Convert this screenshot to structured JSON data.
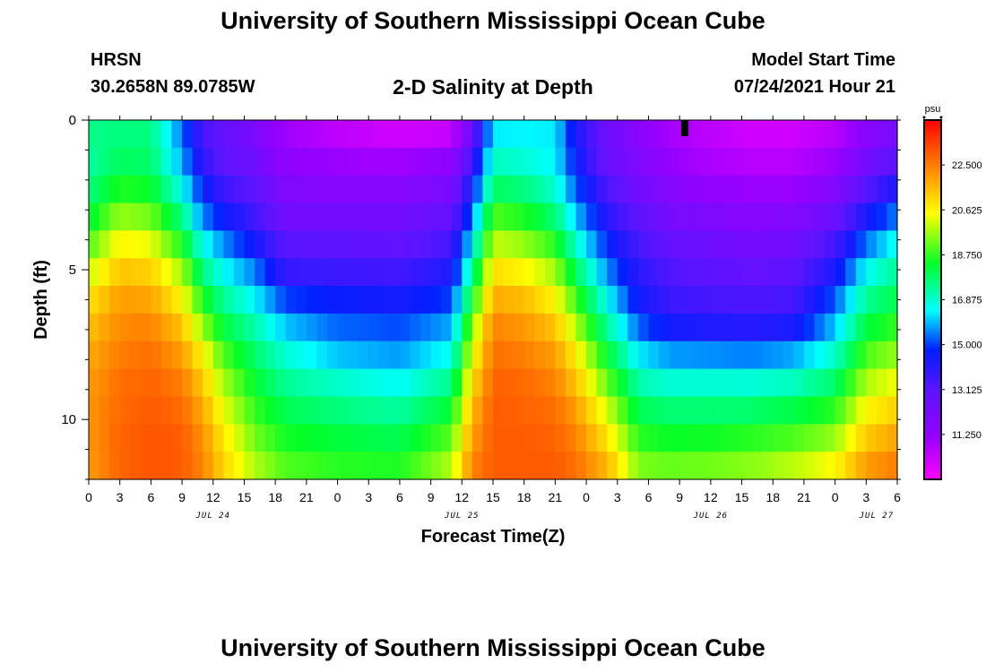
{
  "header": {
    "title": "University of Southern Mississippi Ocean Cube",
    "station": "HRSN",
    "coords": "30.2658N  89.0785W",
    "subtitle": "2-D Salinity at Depth",
    "model_label": "Model Start Time",
    "model_time": "07/24/2021 Hour 21"
  },
  "footer": {
    "title": "University of Southern Mississippi Ocean Cube"
  },
  "chart_data": {
    "type": "heatmap",
    "title": "2-D Salinity at Depth",
    "xlabel": "Forecast Time(Z)",
    "ylabel": "Depth (ft)",
    "x_range_hours_from_jul23_21z": [
      3,
      81
    ],
    "ylim": [
      0,
      12
    ],
    "y_ticks": [
      "0",
      "5",
      "10"
    ],
    "x_tick_labels": [
      "0",
      "3",
      "6",
      "9",
      "12",
      "15",
      "18",
      "21",
      "0",
      "3",
      "6",
      "9",
      "12",
      "15",
      "18",
      "21",
      "0",
      "3",
      "6",
      "9",
      "12",
      "15",
      "18",
      "21",
      "0",
      "3",
      "6"
    ],
    "date_labels": [
      "JUL 24",
      "JUL 25",
      "JUL 26",
      "JUL 27"
    ],
    "colorbar": {
      "unit": "psu",
      "min": 9.375,
      "max": 24.375,
      "ticks": [
        "22.500",
        "20.625",
        "18.750",
        "16.875",
        "15.000",
        "13.125",
        "11.250"
      ]
    },
    "depth_rows_ft": [
      0,
      1,
      2,
      3,
      4,
      5,
      6,
      7,
      8,
      9,
      10,
      11,
      12
    ],
    "columns": [
      {
        "t": 0,
        "s": [
          17.5,
          17.3,
          17.6,
          18.2,
          19.0,
          20.0,
          20.9,
          21.4,
          21.8,
          22.0,
          22.1,
          22.1,
          22.0
        ]
      },
      {
        "t": 3,
        "s": [
          17.6,
          17.9,
          18.6,
          19.6,
          20.6,
          21.4,
          22.0,
          22.3,
          22.5,
          22.7,
          22.8,
          22.9,
          22.9
        ]
      },
      {
        "t": 6,
        "s": [
          17.6,
          17.8,
          18.4,
          19.3,
          20.3,
          21.2,
          21.9,
          22.4,
          22.7,
          22.9,
          23.0,
          23.1,
          23.1
        ]
      },
      {
        "t": 9,
        "s": [
          15.4,
          15.8,
          16.6,
          17.6,
          18.6,
          19.7,
          20.6,
          21.4,
          22.0,
          22.5,
          22.8,
          23.0,
          23.0
        ]
      },
      {
        "t": 11,
        "s": [
          13.4,
          13.9,
          14.7,
          15.5,
          16.6,
          17.6,
          18.6,
          19.6,
          20.6,
          21.3,
          21.8,
          22.2,
          22.4
        ]
      },
      {
        "t": 13,
        "s": [
          12.9,
          13.0,
          13.7,
          14.6,
          15.6,
          16.5,
          17.4,
          18.2,
          19.0,
          19.7,
          20.3,
          20.8,
          21.1
        ]
      },
      {
        "t": 16,
        "s": [
          12.0,
          12.4,
          13.0,
          13.6,
          14.4,
          15.5,
          16.4,
          17.2,
          17.8,
          18.3,
          18.8,
          19.3,
          19.8
        ]
      },
      {
        "t": 19,
        "s": [
          11.0,
          11.4,
          11.9,
          12.4,
          13.1,
          13.8,
          15.0,
          16.0,
          16.8,
          17.4,
          18.0,
          18.5,
          19.0
        ]
      },
      {
        "t": 24,
        "s": [
          10.5,
          11.1,
          11.7,
          12.3,
          13.0,
          13.7,
          14.6,
          15.3,
          16.0,
          16.9,
          17.6,
          18.2,
          18.7
        ]
      },
      {
        "t": 30,
        "s": [
          10.2,
          11.0,
          11.7,
          12.3,
          12.9,
          13.6,
          14.4,
          15.1,
          15.7,
          16.5,
          17.3,
          18.0,
          18.6
        ]
      },
      {
        "t": 35,
        "s": [
          10.4,
          11.4,
          12.1,
          12.8,
          13.5,
          14.2,
          15.0,
          15.8,
          16.6,
          17.5,
          18.3,
          19.1,
          19.8
        ]
      },
      {
        "t": 37,
        "s": [
          12.7,
          13.6,
          14.5,
          15.4,
          16.4,
          17.4,
          18.4,
          19.5,
          20.3,
          21.0,
          21.6,
          22.0,
          22.4
        ]
      },
      {
        "t": 39,
        "s": [
          16.3,
          17.0,
          17.9,
          19.0,
          20.0,
          21.0,
          21.8,
          22.4,
          22.7,
          22.9,
          23.0,
          23.0,
          23.0
        ]
      },
      {
        "t": 42,
        "s": [
          16.4,
          16.8,
          17.6,
          18.6,
          19.6,
          20.6,
          21.5,
          22.1,
          22.5,
          22.8,
          22.9,
          23.0,
          23.0
        ]
      },
      {
        "t": 45,
        "s": [
          16.3,
          16.4,
          16.9,
          17.7,
          18.7,
          19.7,
          20.6,
          21.4,
          22.0,
          22.4,
          22.7,
          22.9,
          23.0
        ]
      },
      {
        "t": 47,
        "s": [
          14.3,
          14.6,
          15.2,
          16.0,
          16.9,
          17.9,
          18.9,
          19.8,
          20.7,
          21.4,
          22.0,
          22.4,
          22.7
        ]
      },
      {
        "t": 50,
        "s": [
          12.5,
          12.7,
          13.4,
          14.0,
          14.8,
          15.6,
          16.5,
          17.4,
          18.3,
          19.2,
          20.1,
          20.9,
          21.6
        ]
      },
      {
        "t": 53,
        "s": [
          11.6,
          11.9,
          12.4,
          13.0,
          13.5,
          14.0,
          14.5,
          15.3,
          16.3,
          17.2,
          18.0,
          18.7,
          19.4
        ]
      },
      {
        "t": 56,
        "s": [
          10.9,
          11.2,
          11.7,
          12.2,
          12.8,
          13.3,
          13.7,
          14.4,
          15.7,
          16.8,
          17.7,
          18.4,
          19.2
        ]
      },
      {
        "t": 60,
        "s": [
          10.5,
          10.8,
          11.3,
          11.9,
          12.5,
          13.0,
          13.5,
          14.2,
          15.6,
          16.8,
          17.7,
          18.5,
          19.3
        ]
      },
      {
        "t": 64,
        "s": [
          10.2,
          10.6,
          11.1,
          11.7,
          12.3,
          12.8,
          13.4,
          14.1,
          15.5,
          16.8,
          17.8,
          18.7,
          19.5
        ]
      },
      {
        "t": 68,
        "s": [
          10.2,
          10.6,
          11.1,
          11.8,
          12.4,
          13.0,
          13.5,
          14.3,
          15.8,
          17.0,
          18.1,
          19.0,
          19.9
        ]
      },
      {
        "t": 72,
        "s": [
          10.6,
          11.1,
          11.8,
          12.6,
          13.5,
          14.3,
          15.2,
          16.0,
          16.9,
          17.8,
          18.7,
          19.6,
          20.5
        ]
      },
      {
        "t": 75,
        "s": [
          11.6,
          12.3,
          13.2,
          14.3,
          15.4,
          16.5,
          17.4,
          18.2,
          19.0,
          19.8,
          20.6,
          21.3,
          22.0
        ]
      },
      {
        "t": 78,
        "s": [
          12.3,
          13.1,
          14.3,
          15.5,
          16.6,
          17.4,
          18.1,
          18.8,
          19.6,
          20.4,
          21.2,
          21.9,
          22.5
        ]
      }
    ],
    "current_time_marker_hour": 57.5
  }
}
